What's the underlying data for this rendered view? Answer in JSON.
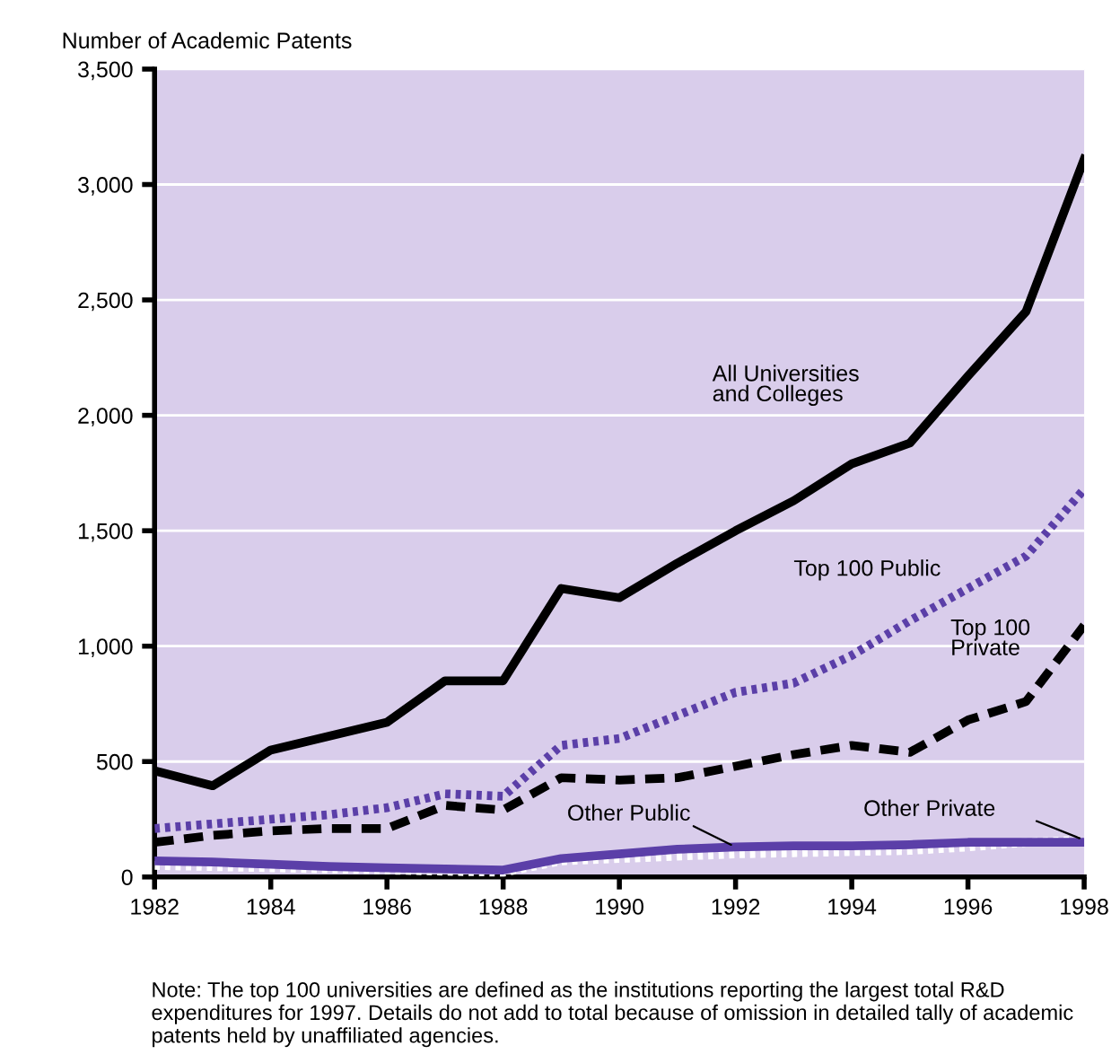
{
  "chart_data": {
    "type": "line",
    "ylabel": "Number of Academic Patents",
    "x": [
      1982,
      1983,
      1984,
      1985,
      1986,
      1987,
      1988,
      1989,
      1990,
      1991,
      1992,
      1993,
      1994,
      1995,
      1996,
      1997,
      1998
    ],
    "series": [
      {
        "name": "All Universities\nand Colleges",
        "color": "#000000",
        "line_style": "solid",
        "values": [
          460,
          395,
          550,
          610,
          670,
          850,
          850,
          1250,
          1210,
          1360,
          1500,
          1630,
          1790,
          1880,
          2170,
          2450,
          3110
        ]
      },
      {
        "name": "Top 100 Public",
        "color": "#5b3fa8",
        "line_style": "dotted",
        "values": [
          210,
          230,
          250,
          270,
          300,
          360,
          350,
          570,
          600,
          700,
          800,
          840,
          960,
          1110,
          1250,
          1390,
          1680
        ]
      },
      {
        "name": "Top 100\nPrivate",
        "color": "#000000",
        "line_style": "dashed",
        "values": [
          150,
          180,
          200,
          210,
          210,
          310,
          290,
          430,
          420,
          430,
          480,
          530,
          570,
          540,
          680,
          760,
          1090
        ]
      },
      {
        "name": "Other Public",
        "color": "#5b3fa8",
        "line_style": "solid",
        "values": [
          70,
          65,
          55,
          45,
          40,
          35,
          30,
          80,
          100,
          120,
          130,
          135,
          135,
          140,
          150,
          150,
          150
        ]
      },
      {
        "name": "Other Private",
        "color": "#ffffff",
        "line_style": "dotted",
        "values": [
          50,
          45,
          40,
          35,
          30,
          25,
          20,
          70,
          80,
          90,
          100,
          105,
          110,
          115,
          130,
          150,
          160
        ]
      }
    ],
    "xlim": [
      1982,
      1998
    ],
    "xticks": [
      1982,
      1984,
      1986,
      1988,
      1990,
      1992,
      1994,
      1996,
      1998
    ],
    "ylim": [
      0,
      3500
    ],
    "yticks": [
      {
        "value": 0,
        "label": "0"
      },
      {
        "value": 500,
        "label": "500"
      },
      {
        "value": 1000,
        "label": "1,000"
      },
      {
        "value": 1500,
        "label": "1,500"
      },
      {
        "value": 2000,
        "label": "2,000"
      },
      {
        "value": 2500,
        "label": "2,500"
      },
      {
        "value": 3000,
        "label": "3,000"
      },
      {
        "value": 3500,
        "label": "3,500"
      }
    ],
    "grid": "y",
    "legend": false,
    "marker": "none",
    "annotations": [
      "Note: The top 100 universities are defined as the institutions reporting the largest total R&D expenditures for 1997. Details do not add to total because of omission in detailed tally of academic patents held by unaffiliated agencies."
    ]
  }
}
